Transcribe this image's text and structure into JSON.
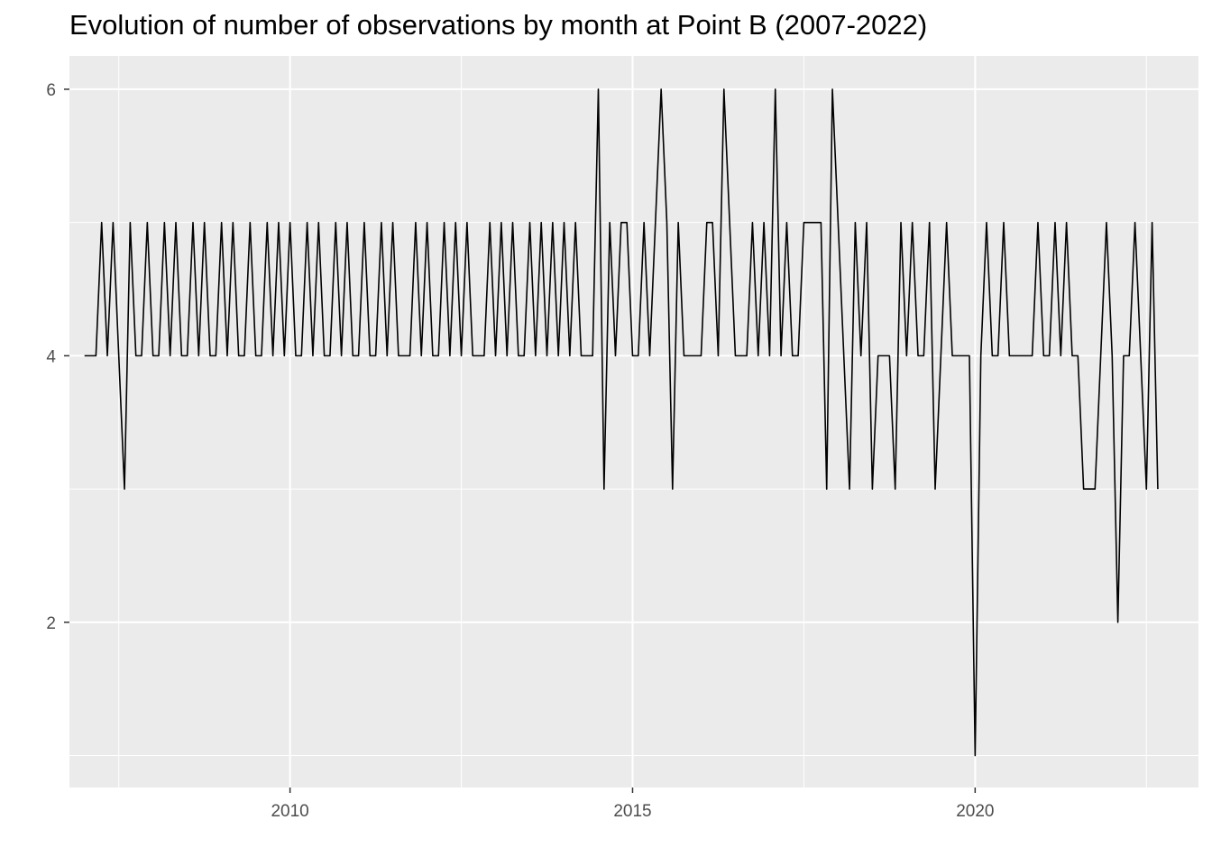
{
  "chart_data": {
    "type": "line",
    "title": "Evolution of number of observations by month at Point B (2007-2022)",
    "xlabel": "",
    "ylabel": "",
    "xlim": [
      2006.78,
      2023.26
    ],
    "ylim": [
      0.76,
      6.25
    ],
    "x_ticks": [
      2010,
      2015,
      2020
    ],
    "x_tick_labels": [
      "2010",
      "2015",
      "2020"
    ],
    "y_ticks": [
      2,
      4,
      6
    ],
    "y_tick_labels": [
      "2",
      "4",
      "6"
    ],
    "grid": true,
    "legend": "none",
    "line_color": "#000000",
    "panel_color": "#ebebeb",
    "grid_color": "#ffffff",
    "series": [
      {
        "x_start": 2007.0,
        "x_step_months": 1,
        "values": [
          4,
          4,
          4,
          5,
          4,
          5,
          4,
          3,
          5,
          4,
          4,
          5,
          4,
          4,
          5,
          4,
          5,
          4,
          4,
          5,
          4,
          5,
          4,
          4,
          5,
          4,
          5,
          4,
          4,
          5,
          4,
          4,
          5,
          4,
          5,
          4,
          5,
          4,
          4,
          5,
          4,
          5,
          4,
          4,
          5,
          4,
          5,
          4,
          4,
          5,
          4,
          4,
          5,
          4,
          5,
          4,
          4,
          4,
          5,
          4,
          5,
          4,
          4,
          5,
          4,
          5,
          4,
          5,
          4,
          4,
          4,
          5,
          4,
          5,
          4,
          5,
          4,
          4,
          5,
          4,
          5,
          4,
          5,
          4,
          5,
          4,
          5,
          4,
          4,
          4,
          6,
          3,
          5,
          4,
          5,
          5,
          4,
          4,
          5,
          4,
          5,
          6,
          5,
          3,
          5,
          4,
          4,
          4,
          4,
          5,
          5,
          4,
          6,
          5,
          4,
          4,
          4,
          5,
          4,
          5,
          4,
          6,
          4,
          5,
          4,
          4,
          5,
          5,
          5,
          5,
          3,
          6,
          5,
          4,
          3,
          5,
          4,
          5,
          3,
          4,
          4,
          4,
          3,
          5,
          4,
          5,
          4,
          4,
          5,
          3,
          4,
          5,
          4,
          4,
          4,
          4,
          1,
          4,
          5,
          4,
          4,
          5,
          4,
          4,
          4,
          4,
          4,
          5,
          4,
          4,
          5,
          4,
          5,
          4,
          4,
          3,
          3,
          3,
          4,
          5,
          4,
          2,
          4,
          4,
          5,
          4,
          3,
          5,
          3
        ]
      }
    ]
  }
}
